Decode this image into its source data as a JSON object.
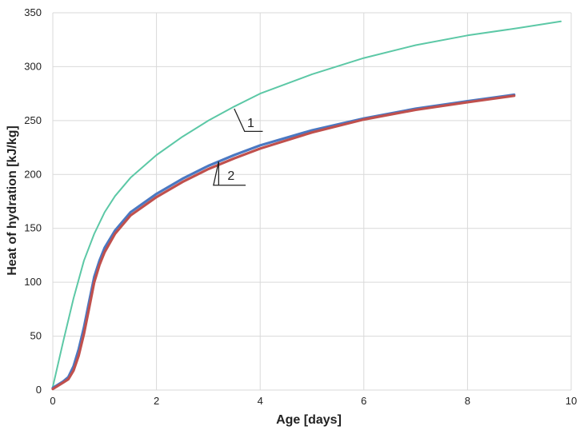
{
  "chart_data": {
    "type": "line",
    "title": "",
    "xlabel": "Age [days]",
    "ylabel": "Heat of hydration [kJ/kg]",
    "xlim": [
      0,
      10
    ],
    "ylim": [
      0,
      350
    ],
    "xticks": [
      0,
      2,
      4,
      6,
      8,
      10
    ],
    "yticks": [
      0,
      50,
      100,
      150,
      200,
      250,
      300,
      350
    ],
    "grid": true,
    "legend": "none",
    "annotations": [
      {
        "text": "1",
        "x": 3.5,
        "y": 260
      },
      {
        "text": "2",
        "x": 3.2,
        "y": 210
      }
    ],
    "series": [
      {
        "color": "#5cc8a6",
        "points": [
          [
            0,
            3
          ],
          [
            0.2,
            45
          ],
          [
            0.4,
            85
          ],
          [
            0.6,
            120
          ],
          [
            0.8,
            145
          ],
          [
            1.0,
            165
          ],
          [
            1.2,
            180
          ],
          [
            1.5,
            197
          ],
          [
            2.0,
            218
          ],
          [
            2.5,
            235
          ],
          [
            3.0,
            250
          ],
          [
            3.5,
            263
          ],
          [
            4.0,
            275
          ],
          [
            5.0,
            293
          ],
          [
            6.0,
            308
          ],
          [
            7.0,
            320
          ],
          [
            8.0,
            329
          ],
          [
            9.0,
            336
          ],
          [
            9.8,
            342
          ]
        ]
      },
      {
        "color": "#4a78c2",
        "points": [
          [
            0,
            2
          ],
          [
            0.2,
            8
          ],
          [
            0.3,
            12
          ],
          [
            0.4,
            22
          ],
          [
            0.5,
            38
          ],
          [
            0.6,
            58
          ],
          [
            0.7,
            82
          ],
          [
            0.8,
            105
          ],
          [
            0.9,
            120
          ],
          [
            1.0,
            132
          ],
          [
            1.2,
            148
          ],
          [
            1.5,
            165
          ],
          [
            2.0,
            182
          ],
          [
            2.5,
            196
          ],
          [
            3.0,
            208
          ],
          [
            3.5,
            218
          ],
          [
            4.0,
            227
          ],
          [
            5.0,
            241
          ],
          [
            6.0,
            252
          ],
          [
            7.0,
            261
          ],
          [
            8.0,
            268
          ],
          [
            8.9,
            274
          ]
        ]
      },
      {
        "color": "#c0504d",
        "points": [
          [
            0,
            1
          ],
          [
            0.2,
            7
          ],
          [
            0.3,
            10
          ],
          [
            0.4,
            18
          ],
          [
            0.5,
            32
          ],
          [
            0.6,
            52
          ],
          [
            0.7,
            76
          ],
          [
            0.8,
            100
          ],
          [
            0.9,
            116
          ],
          [
            1.0,
            128
          ],
          [
            1.2,
            145
          ],
          [
            1.5,
            162
          ],
          [
            2.0,
            179
          ],
          [
            2.5,
            193
          ],
          [
            3.0,
            205
          ],
          [
            3.5,
            215
          ],
          [
            4.0,
            224
          ],
          [
            5.0,
            239
          ],
          [
            6.0,
            251
          ],
          [
            7.0,
            260
          ],
          [
            8.0,
            267
          ],
          [
            8.9,
            273
          ]
        ]
      }
    ]
  }
}
